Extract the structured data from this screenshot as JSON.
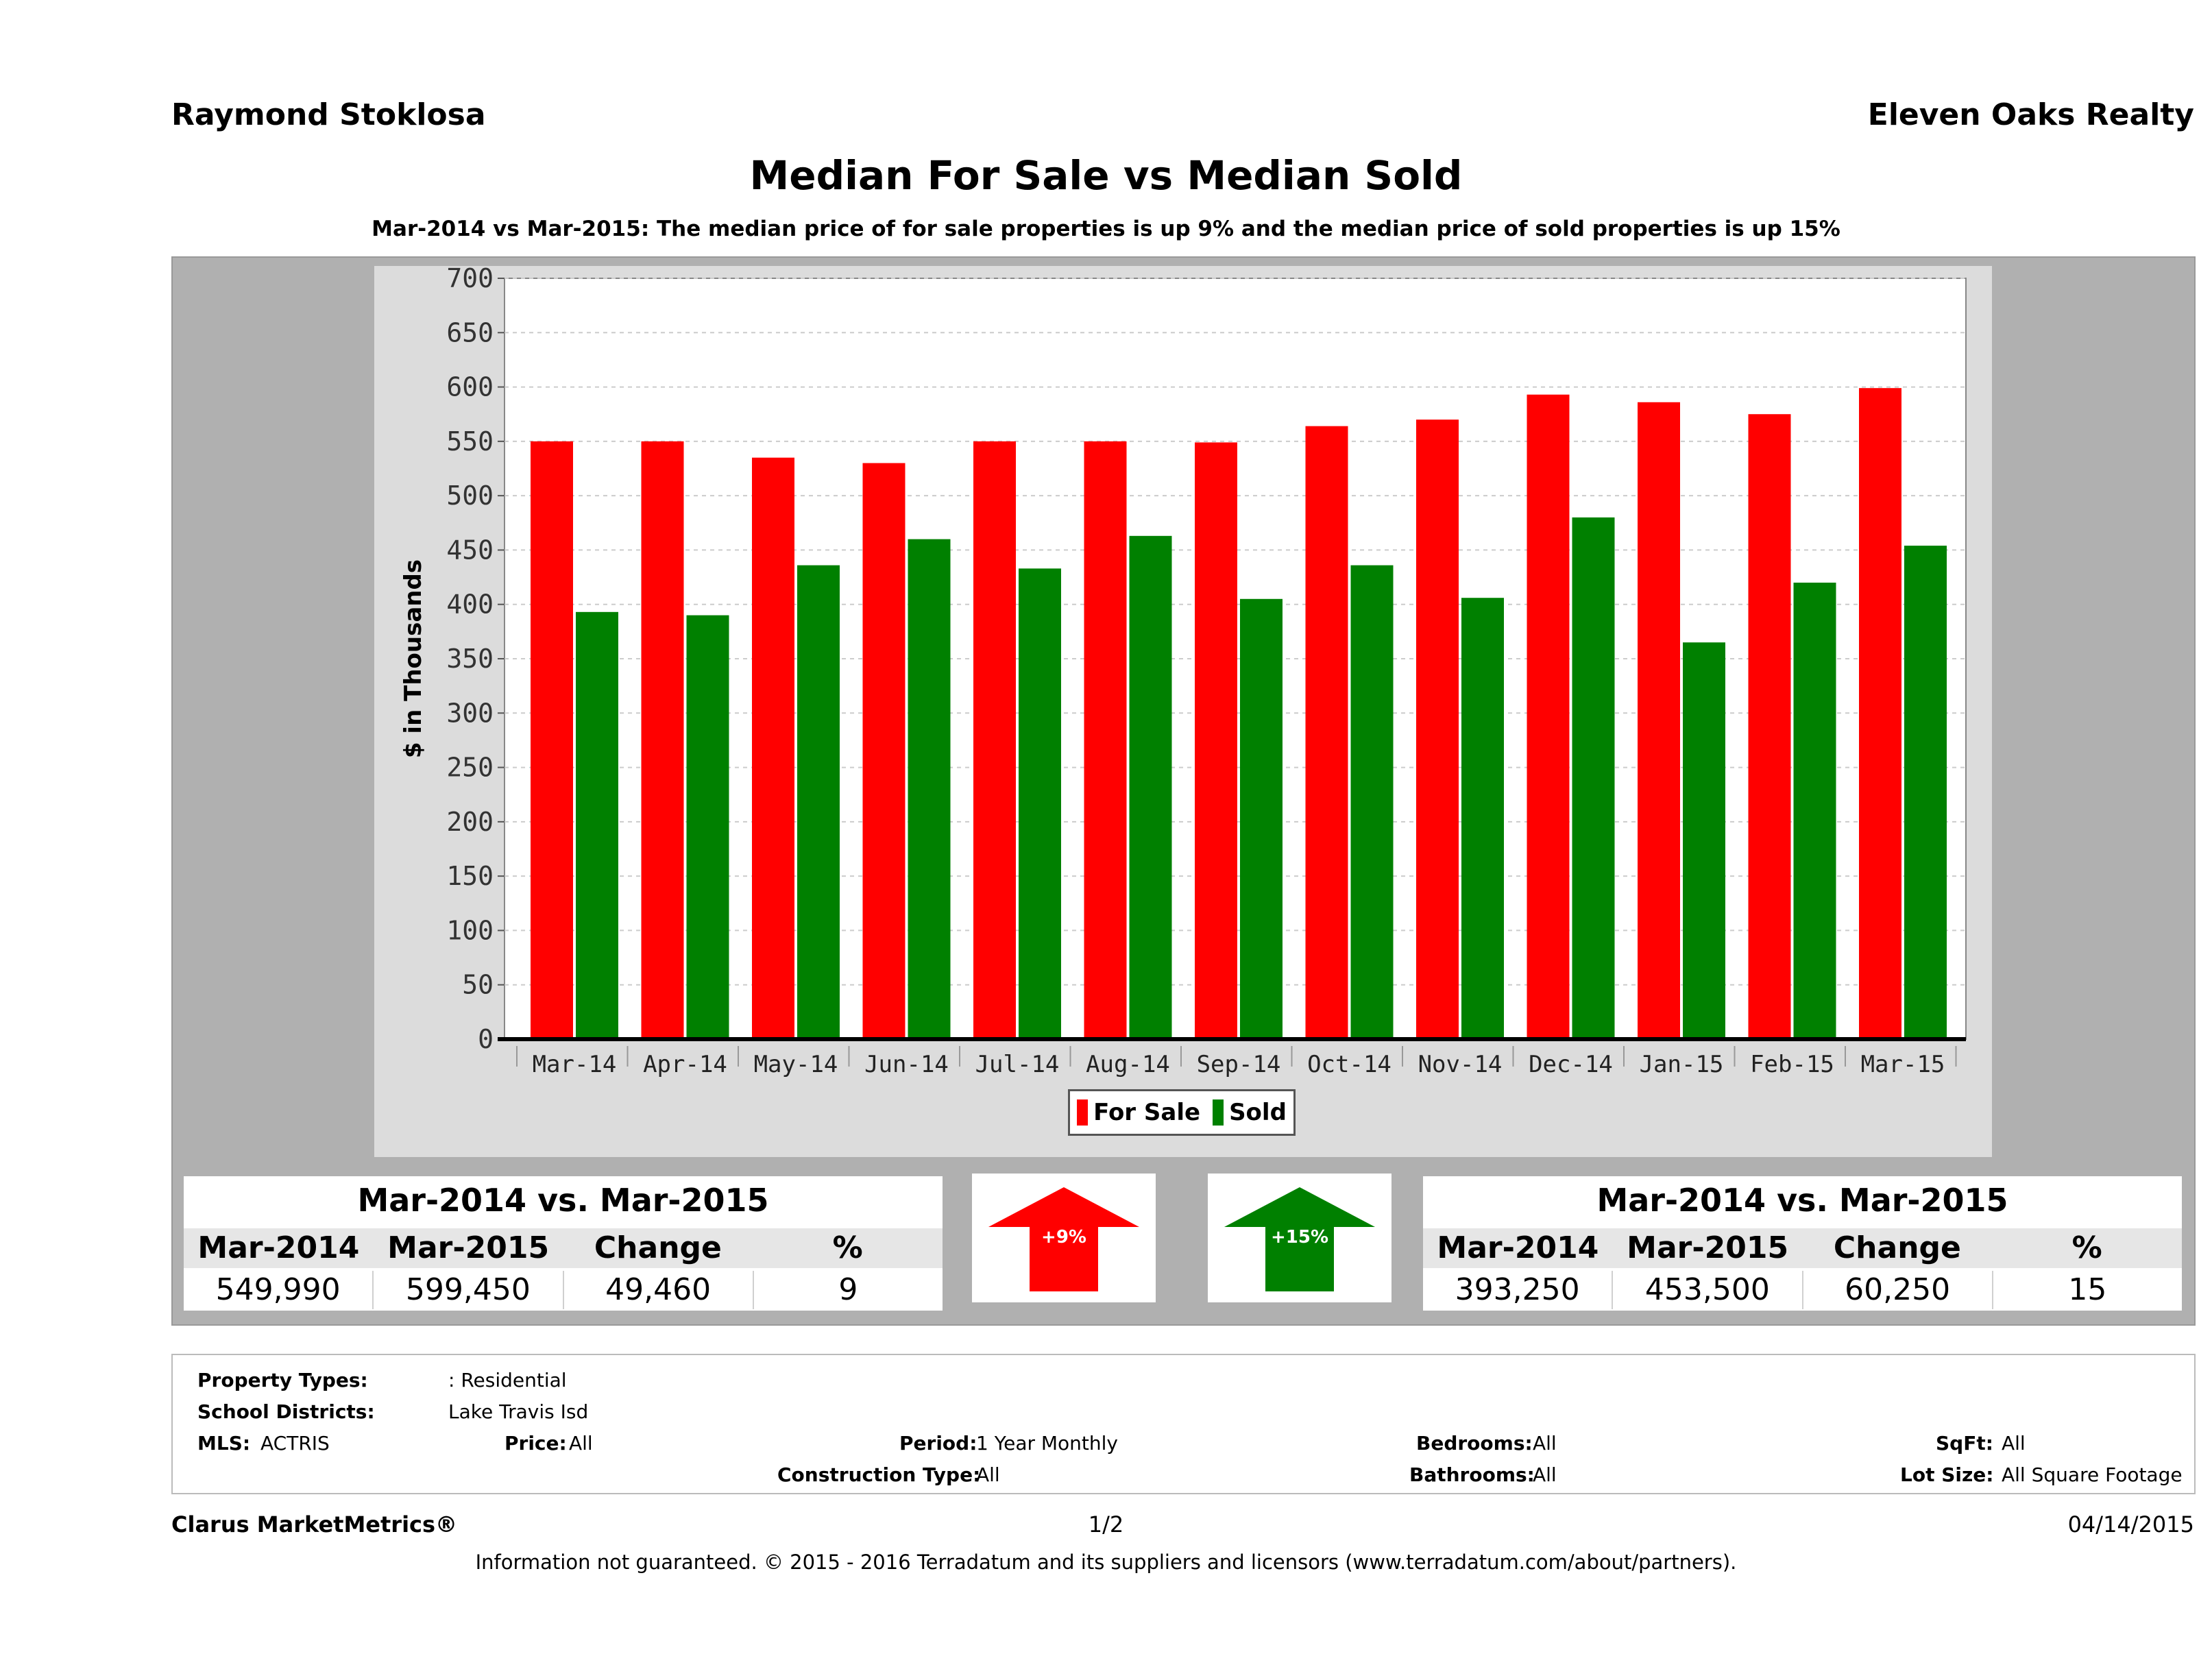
{
  "header": {
    "agent": "Raymond Stoklosa",
    "brokerage": "Eleven Oaks Realty"
  },
  "chart_data": {
    "type": "bar",
    "title": "Median For Sale vs Median Sold",
    "subtitle": "Mar-2014 vs Mar-2015: The median price of for sale properties is up 9% and the median price of sold properties is up 15%",
    "xlabel": "",
    "ylabel": "$ in Thousands",
    "ylim": [
      0,
      700
    ],
    "yticks": [
      0,
      50,
      100,
      150,
      200,
      250,
      300,
      350,
      400,
      450,
      500,
      550,
      600,
      650,
      700
    ],
    "grid": true,
    "legend_position": "bottom",
    "categories": [
      "Mar-14",
      "Apr-14",
      "May-14",
      "Jun-14",
      "Jul-14",
      "Aug-14",
      "Sep-14",
      "Oct-14",
      "Nov-14",
      "Dec-14",
      "Jan-15",
      "Feb-15",
      "Mar-15"
    ],
    "series": [
      {
        "name": "For Sale",
        "color": "#ff0000",
        "values": [
          550,
          550,
          535,
          530,
          550,
          550,
          549,
          564,
          570,
          593,
          586,
          575,
          599
        ]
      },
      {
        "name": "Sold",
        "color": "#008000",
        "values": [
          393,
          390,
          436,
          460,
          433,
          463,
          405,
          436,
          406,
          480,
          365,
          420,
          454
        ]
      }
    ]
  },
  "for_sale_summary": {
    "title": "Mar-2014 vs. Mar-2015",
    "headers": [
      "Mar-2014",
      "Mar-2015",
      "Change",
      "%"
    ],
    "values": [
      "549,990",
      "599,450",
      "49,460",
      "9"
    ],
    "arrow_label": "+9%",
    "arrow_color": "#ff0000"
  },
  "sold_summary": {
    "title": "Mar-2014 vs. Mar-2015",
    "headers": [
      "Mar-2014",
      "Mar-2015",
      "Change",
      "%"
    ],
    "values": [
      "393,250",
      "453,500",
      "60,250",
      "15"
    ],
    "arrow_label": "+15%",
    "arrow_color": "#008000"
  },
  "criteria": {
    "property_types_label": "Property Types:",
    "property_types_value": ": Residential",
    "school_districts_label": "School Districts:",
    "school_districts_value": "Lake Travis Isd",
    "mls_label": "MLS:",
    "mls_value": "ACTRIS",
    "price_label": "Price:",
    "price_value": "All",
    "period_label": "Period:",
    "period_value": "1 Year Monthly",
    "construction_label": "Construction Type:",
    "construction_value": "All",
    "bedrooms_label": "Bedrooms:",
    "bedrooms_value": "All",
    "bathrooms_label": "Bathrooms:",
    "bathrooms_value": "All",
    "sqft_label": "SqFt:",
    "sqft_value": "All",
    "lot_label": "Lot Size:",
    "lot_value": "All Square Footage"
  },
  "footer": {
    "product": "Clarus MarketMetrics®",
    "page": "1/2",
    "date": "04/14/2015",
    "disclaimer": "Information not guaranteed. © 2015 - 2016 Terradatum and its suppliers and licensors (www.terradatum.com/about/partners)."
  }
}
